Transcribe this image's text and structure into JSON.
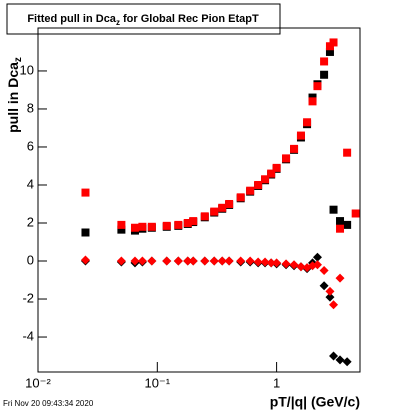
{
  "chart_data": {
    "type": "scatter",
    "title": "Fitted pull in Dca",
    "title_subscript": "z",
    "title_rest": " for Global Rec Pion EtapT",
    "y_label": "pull in Dca",
    "y_label_subscript": "z",
    "x_label": "pT/|q| (GeV/c)",
    "timestamp": "Fri Nov 20 09:43:34 2020",
    "log_x": true,
    "xlim": [
      0.01,
      5
    ],
    "ylim": [
      -5.84,
      12.26
    ],
    "xticks": [
      {
        "value": 0.01,
        "label": "10⁻²"
      },
      {
        "value": 0.1,
        "label": "10⁻¹"
      },
      1
    ],
    "yticks": [
      -4,
      -2,
      0,
      2,
      4,
      6,
      8,
      10
    ],
    "x": [
      0.025,
      0.05,
      0.065,
      0.075,
      0.09,
      0.12,
      0.15,
      0.18,
      0.2,
      0.25,
      0.3,
      0.35,
      0.4,
      0.5,
      0.6,
      0.7,
      0.8,
      0.9,
      1.0,
      1.2,
      1.4,
      1.6,
      1.8,
      2.0,
      2.2,
      2.5,
      2.8,
      3.0,
      3.4,
      3.9,
      4.6
    ],
    "series": [
      {
        "color": "#000000",
        "marker": "square",
        "values": [
          1.5,
          1.65,
          1.6,
          1.7,
          1.75,
          1.8,
          1.85,
          1.95,
          2.05,
          2.3,
          2.55,
          2.75,
          2.95,
          3.3,
          3.65,
          3.95,
          4.25,
          4.55,
          4.85,
          5.35,
          5.85,
          6.5,
          7.2,
          8.6,
          9.3,
          9.8,
          11.0,
          2.7,
          2.1,
          1.9,
          null
        ]
      },
      {
        "color": "#ff0000",
        "marker": "square",
        "values": [
          3.6,
          1.9,
          1.75,
          1.8,
          1.8,
          1.85,
          1.9,
          2.0,
          2.1,
          2.35,
          2.6,
          2.8,
          3.0,
          3.35,
          3.7,
          4.0,
          4.3,
          4.6,
          4.9,
          5.4,
          5.9,
          6.6,
          7.3,
          8.4,
          9.2,
          10.5,
          11.3,
          11.5,
          1.7,
          5.7,
          2.5
        ]
      },
      {
        "color": "#000000",
        "marker": "diamond",
        "values": [
          0,
          -0.05,
          -0.1,
          -0.05,
          0,
          0,
          0,
          0,
          0,
          0,
          0,
          0,
          0,
          -0.05,
          -0.05,
          -0.1,
          -0.1,
          -0.1,
          -0.15,
          -0.2,
          -0.25,
          -0.3,
          -0.4,
          -0.1,
          0.2,
          -1.3,
          -1.9,
          -5.0,
          -5.2,
          -5.3,
          null
        ]
      },
      {
        "color": "#ff0000",
        "marker": "diamond",
        "values": [
          0.05,
          0,
          0,
          0,
          0,
          0,
          0,
          0,
          0,
          0,
          0,
          0,
          0,
          0,
          0,
          -0.05,
          -0.05,
          -0.1,
          -0.1,
          -0.15,
          -0.2,
          -0.3,
          -0.35,
          -0.25,
          -0.2,
          -0.5,
          -1.6,
          -2.3,
          -0.9,
          null,
          null
        ]
      }
    ]
  }
}
